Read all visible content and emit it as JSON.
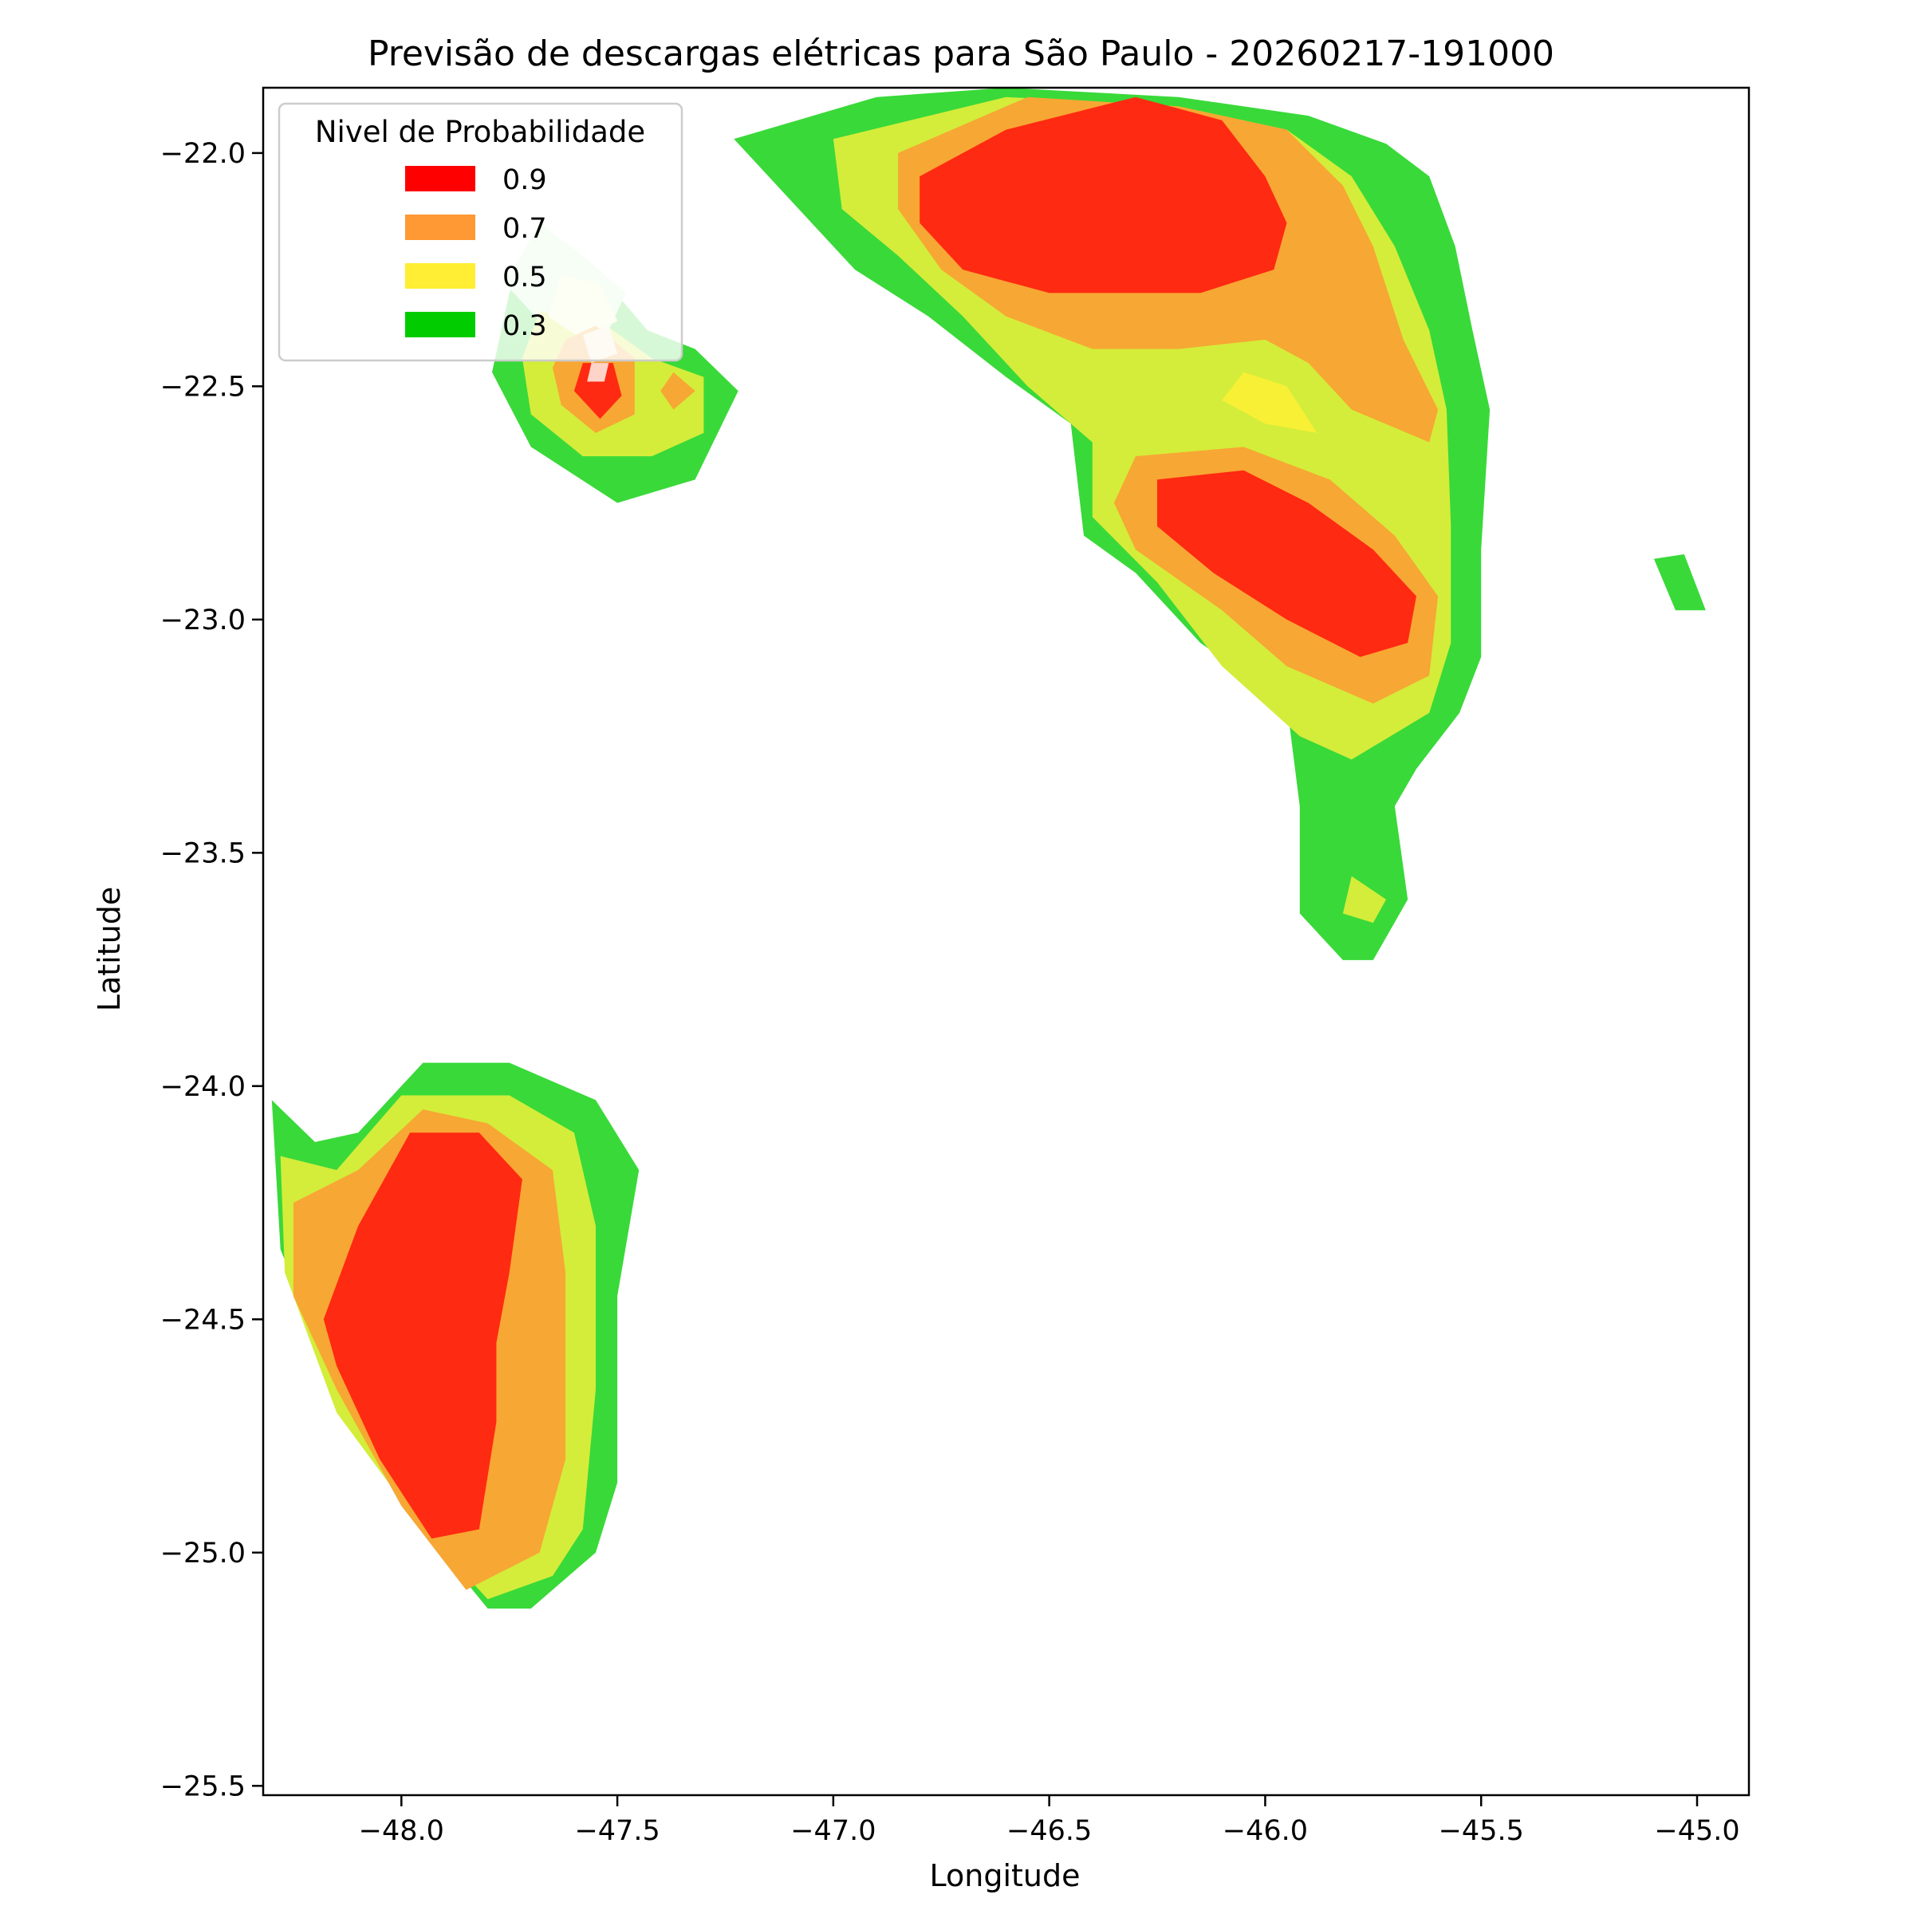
{
  "chart_data": {
    "type": "contour",
    "title": "Previsão de descargas elétricas para São Paulo - 20260217-191000",
    "xlabel": "Longitude",
    "ylabel": "Latitude",
    "xlim": [
      -48.32,
      -44.88
    ],
    "ylim": [
      -25.52,
      -21.86
    ],
    "xticks": [
      -48.0,
      -47.5,
      -47.0,
      -46.5,
      -46.0,
      -45.5,
      -45.0
    ],
    "xtick_labels": [
      "−48.0",
      "−47.5",
      "−47.0",
      "−46.5",
      "−46.0",
      "−45.5",
      "−45.0"
    ],
    "yticks": [
      -22.0,
      -22.5,
      -23.0,
      -23.5,
      -24.0,
      -24.5,
      -25.0,
      -25.5
    ],
    "ytick_labels": [
      "−22.0",
      "−22.5",
      "−23.0",
      "−23.5",
      "−24.0",
      "−24.5",
      "−25.0",
      "−25.5"
    ],
    "grid": false,
    "legend": {
      "title": "Nivel de Probabilidade",
      "placement": "top-left",
      "entries": [
        {
          "label": "0.9",
          "color": "#ff0000"
        },
        {
          "label": "0.7",
          "color": "#ff9933"
        },
        {
          "label": "0.5",
          "color": "#ffee33"
        },
        {
          "label": "0.3",
          "color": "#00cc00"
        }
      ]
    },
    "fill_colors": {
      "green": "#39d939",
      "light_green": "#d4ed3a",
      "yellow": "#f8f035",
      "orange": "#f7a733",
      "red": "#ff2a12",
      "pale_green": "#d3f7d3",
      "pale_yellow": "#f4f8c8",
      "pale_orange": "#fbe6c6",
      "pale_red": "#ffd4c8"
    },
    "regions": [
      {
        "name": "cell-north-west",
        "level": "green",
        "points": [
          [
            -47.68,
            -22.15
          ],
          [
            -47.55,
            -22.25
          ],
          [
            -47.43,
            -22.38
          ],
          [
            -47.32,
            -22.42
          ],
          [
            -47.22,
            -22.51
          ],
          [
            -47.32,
            -22.7
          ],
          [
            -47.5,
            -22.75
          ],
          [
            -47.7,
            -22.63
          ],
          [
            -47.79,
            -22.47
          ],
          [
            -47.75,
            -22.3
          ]
        ]
      },
      {
        "name": "cell-north-west",
        "level": "pale_green",
        "points": [
          [
            -47.68,
            -22.15
          ],
          [
            -47.58,
            -22.22
          ],
          [
            -47.48,
            -22.3
          ],
          [
            -47.54,
            -22.42
          ],
          [
            -47.66,
            -22.38
          ],
          [
            -47.76,
            -22.28
          ]
        ]
      },
      {
        "name": "cell-north-west",
        "level": "light_green",
        "points": [
          [
            -47.68,
            -22.34
          ],
          [
            -47.54,
            -22.36
          ],
          [
            -47.42,
            -22.44
          ],
          [
            -47.3,
            -22.48
          ],
          [
            -47.3,
            -22.6
          ],
          [
            -47.42,
            -22.65
          ],
          [
            -47.58,
            -22.65
          ],
          [
            -47.7,
            -22.56
          ],
          [
            -47.72,
            -22.44
          ]
        ]
      },
      {
        "name": "cell-north-west",
        "level": "pale_yellow",
        "points": [
          [
            -47.63,
            -22.26
          ],
          [
            -47.54,
            -22.28
          ],
          [
            -47.5,
            -22.36
          ],
          [
            -47.58,
            -22.4
          ],
          [
            -47.66,
            -22.35
          ]
        ]
      },
      {
        "name": "cell-north-west",
        "level": "orange",
        "points": [
          [
            -47.62,
            -22.4
          ],
          [
            -47.55,
            -22.37
          ],
          [
            -47.46,
            -22.44
          ],
          [
            -47.46,
            -22.56
          ],
          [
            -47.55,
            -22.6
          ],
          [
            -47.63,
            -22.54
          ],
          [
            -47.65,
            -22.46
          ]
        ]
      },
      {
        "name": "cell-north-west",
        "level": "pale_orange",
        "points": [
          [
            -47.58,
            -22.39
          ],
          [
            -47.52,
            -22.37
          ],
          [
            -47.5,
            -22.43
          ],
          [
            -47.56,
            -22.45
          ]
        ]
      },
      {
        "name": "cell-north-west",
        "level": "orange",
        "points": [
          [
            -47.37,
            -22.47
          ],
          [
            -47.32,
            -22.51
          ],
          [
            -47.37,
            -22.55
          ],
          [
            -47.4,
            -22.51
          ]
        ]
      },
      {
        "name": "cell-north-west",
        "level": "red",
        "points": [
          [
            -47.58,
            -22.45
          ],
          [
            -47.51,
            -22.45
          ],
          [
            -47.49,
            -22.52
          ],
          [
            -47.54,
            -22.57
          ],
          [
            -47.6,
            -22.51
          ]
        ]
      },
      {
        "name": "cell-north-west",
        "level": "pale_red",
        "points": [
          [
            -47.56,
            -22.45
          ],
          [
            -47.52,
            -22.45
          ],
          [
            -47.53,
            -22.49
          ],
          [
            -47.57,
            -22.49
          ]
        ]
      },
      {
        "name": "cell-north-east",
        "level": "green",
        "points": [
          [
            -47.23,
            -21.97
          ],
          [
            -46.9,
            -21.88
          ],
          [
            -46.6,
            -21.86
          ],
          [
            -46.2,
            -21.88
          ],
          [
            -45.9,
            -21.92
          ],
          [
            -45.72,
            -21.98
          ],
          [
            -45.62,
            -22.05
          ],
          [
            -45.56,
            -22.2
          ],
          [
            -45.52,
            -22.38
          ],
          [
            -45.48,
            -22.55
          ],
          [
            -45.5,
            -22.85
          ],
          [
            -45.5,
            -23.08
          ],
          [
            -45.55,
            -23.2
          ],
          [
            -45.65,
            -23.32
          ],
          [
            -45.7,
            -23.4
          ],
          [
            -45.67,
            -23.6
          ],
          [
            -45.75,
            -23.73
          ],
          [
            -45.82,
            -23.73
          ],
          [
            -45.92,
            -23.63
          ],
          [
            -45.92,
            -23.4
          ],
          [
            -45.95,
            -23.18
          ],
          [
            -46.15,
            -23.05
          ],
          [
            -46.3,
            -22.9
          ],
          [
            -46.42,
            -22.82
          ],
          [
            -46.45,
            -22.58
          ],
          [
            -46.6,
            -22.48
          ],
          [
            -46.78,
            -22.35
          ],
          [
            -46.95,
            -22.25
          ],
          [
            -47.1,
            -22.1
          ]
        ]
      },
      {
        "name": "cell-north-east",
        "level": "light_green",
        "points": [
          [
            -47.0,
            -21.97
          ],
          [
            -46.6,
            -21.88
          ],
          [
            -46.2,
            -21.9
          ],
          [
            -45.95,
            -21.95
          ],
          [
            -45.8,
            -22.05
          ],
          [
            -45.7,
            -22.2
          ],
          [
            -45.62,
            -22.38
          ],
          [
            -45.58,
            -22.55
          ],
          [
            -45.57,
            -22.8
          ],
          [
            -45.57,
            -23.05
          ],
          [
            -45.62,
            -23.2
          ],
          [
            -45.8,
            -23.3
          ],
          [
            -45.92,
            -23.25
          ],
          [
            -46.1,
            -23.1
          ],
          [
            -46.25,
            -22.92
          ],
          [
            -46.4,
            -22.78
          ],
          [
            -46.4,
            -22.62
          ],
          [
            -46.55,
            -22.5
          ],
          [
            -46.7,
            -22.35
          ],
          [
            -46.85,
            -22.22
          ],
          [
            -46.98,
            -22.12
          ]
        ]
      },
      {
        "name": "cell-north-east",
        "level": "yellow",
        "points": [
          [
            -46.05,
            -22.47
          ],
          [
            -45.95,
            -22.5
          ],
          [
            -45.88,
            -22.6
          ],
          [
            -46.0,
            -22.58
          ],
          [
            -46.1,
            -22.53
          ]
        ]
      },
      {
        "name": "cell-north-east",
        "level": "orange",
        "points": [
          [
            -46.85,
            -22.0
          ],
          [
            -46.55,
            -21.88
          ],
          [
            -46.2,
            -21.9
          ],
          [
            -45.95,
            -21.95
          ],
          [
            -45.82,
            -22.07
          ],
          [
            -45.75,
            -22.2
          ],
          [
            -45.68,
            -22.4
          ],
          [
            -45.6,
            -22.55
          ],
          [
            -45.62,
            -22.62
          ],
          [
            -45.8,
            -22.55
          ],
          [
            -45.9,
            -22.45
          ],
          [
            -46.0,
            -22.4
          ],
          [
            -46.2,
            -22.42
          ],
          [
            -46.4,
            -22.42
          ],
          [
            -46.6,
            -22.35
          ],
          [
            -46.75,
            -22.25
          ],
          [
            -46.85,
            -22.12
          ]
        ]
      },
      {
        "name": "cell-north-east",
        "level": "orange",
        "points": [
          [
            -46.3,
            -22.65
          ],
          [
            -46.05,
            -22.63
          ],
          [
            -45.85,
            -22.7
          ],
          [
            -45.7,
            -22.82
          ],
          [
            -45.6,
            -22.95
          ],
          [
            -45.62,
            -23.12
          ],
          [
            -45.75,
            -23.18
          ],
          [
            -45.95,
            -23.1
          ],
          [
            -46.1,
            -22.98
          ],
          [
            -46.3,
            -22.85
          ],
          [
            -46.35,
            -22.75
          ]
        ]
      },
      {
        "name": "cell-north-east",
        "level": "red",
        "points": [
          [
            -46.8,
            -22.05
          ],
          [
            -46.6,
            -21.95
          ],
          [
            -46.3,
            -21.88
          ],
          [
            -46.1,
            -21.93
          ],
          [
            -46.0,
            -22.05
          ],
          [
            -45.95,
            -22.15
          ],
          [
            -45.98,
            -22.25
          ],
          [
            -46.15,
            -22.3
          ],
          [
            -46.5,
            -22.3
          ],
          [
            -46.7,
            -22.25
          ],
          [
            -46.8,
            -22.15
          ]
        ]
      },
      {
        "name": "cell-north-east",
        "level": "red",
        "points": [
          [
            -46.25,
            -22.7
          ],
          [
            -46.05,
            -22.68
          ],
          [
            -45.9,
            -22.75
          ],
          [
            -45.75,
            -22.85
          ],
          [
            -45.65,
            -22.95
          ],
          [
            -45.67,
            -23.05
          ],
          [
            -45.78,
            -23.08
          ],
          [
            -45.95,
            -23.0
          ],
          [
            -46.12,
            -22.9
          ],
          [
            -46.25,
            -22.8
          ]
        ]
      },
      {
        "name": "cell-north-east-inner",
        "level": "light_green",
        "points": [
          [
            -45.8,
            -23.55
          ],
          [
            -45.72,
            -23.6
          ],
          [
            -45.75,
            -23.65
          ],
          [
            -45.82,
            -23.63
          ]
        ]
      },
      {
        "name": "cell-east-small",
        "level": "green",
        "points": [
          [
            -45.1,
            -22.87
          ],
          [
            -45.03,
            -22.86
          ],
          [
            -44.98,
            -22.98
          ],
          [
            -45.05,
            -22.98
          ]
        ]
      },
      {
        "name": "cell-south-west",
        "level": "green",
        "points": [
          [
            -48.3,
            -24.03
          ],
          [
            -48.2,
            -24.12
          ],
          [
            -48.1,
            -24.1
          ],
          [
            -47.95,
            -23.95
          ],
          [
            -47.75,
            -23.95
          ],
          [
            -47.55,
            -24.03
          ],
          [
            -47.45,
            -24.18
          ],
          [
            -47.5,
            -24.45
          ],
          [
            -47.5,
            -24.85
          ],
          [
            -47.55,
            -25.0
          ],
          [
            -47.7,
            -25.12
          ],
          [
            -47.8,
            -25.12
          ],
          [
            -47.95,
            -24.95
          ],
          [
            -48.15,
            -24.65
          ],
          [
            -48.28,
            -24.35
          ]
        ]
      },
      {
        "name": "cell-south-west",
        "level": "light_green",
        "points": [
          [
            -48.28,
            -24.15
          ],
          [
            -48.15,
            -24.18
          ],
          [
            -48.0,
            -24.02
          ],
          [
            -47.75,
            -24.02
          ],
          [
            -47.6,
            -24.1
          ],
          [
            -47.55,
            -24.3
          ],
          [
            -47.55,
            -24.65
          ],
          [
            -47.58,
            -24.95
          ],
          [
            -47.65,
            -25.05
          ],
          [
            -47.8,
            -25.1
          ],
          [
            -47.95,
            -24.95
          ],
          [
            -48.15,
            -24.7
          ],
          [
            -48.27,
            -24.4
          ]
        ]
      },
      {
        "name": "cell-south-west",
        "level": "orange",
        "points": [
          [
            -48.25,
            -24.25
          ],
          [
            -48.1,
            -24.18
          ],
          [
            -47.95,
            -24.05
          ],
          [
            -47.8,
            -24.08
          ],
          [
            -47.65,
            -24.18
          ],
          [
            -47.62,
            -24.4
          ],
          [
            -47.62,
            -24.8
          ],
          [
            -47.68,
            -25.0
          ],
          [
            -47.85,
            -25.08
          ],
          [
            -48.0,
            -24.9
          ],
          [
            -48.15,
            -24.65
          ],
          [
            -48.25,
            -24.45
          ]
        ]
      },
      {
        "name": "cell-south-west",
        "level": "red",
        "points": [
          [
            -48.18,
            -24.5
          ],
          [
            -48.1,
            -24.3
          ],
          [
            -47.98,
            -24.1
          ],
          [
            -47.82,
            -24.1
          ],
          [
            -47.72,
            -24.2
          ],
          [
            -47.75,
            -24.4
          ],
          [
            -47.78,
            -24.55
          ],
          [
            -47.78,
            -24.72
          ],
          [
            -47.82,
            -24.95
          ],
          [
            -47.93,
            -24.97
          ],
          [
            -48.05,
            -24.8
          ],
          [
            -48.15,
            -24.6
          ]
        ]
      }
    ]
  }
}
